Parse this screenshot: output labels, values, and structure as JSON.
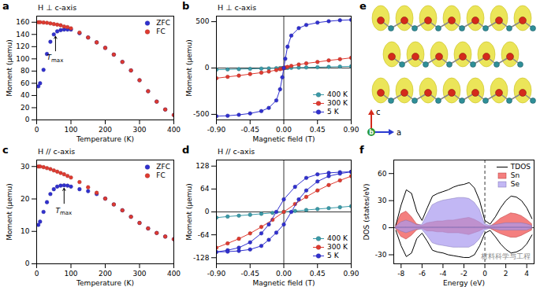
{
  "chart_data": [
    {
      "panel": "a",
      "type": "scatter",
      "condition": "H ⊥ c-axis",
      "xlabel": "Temperature (K)",
      "ylabel": "Moment (μemu)",
      "xlim": [
        0,
        400
      ],
      "xticks": [
        0,
        100,
        200,
        300,
        400
      ],
      "ylim": [
        0,
        170
      ],
      "yticks": [
        0,
        20,
        40,
        60,
        80,
        100,
        120,
        140,
        160
      ],
      "legend": "top-right",
      "x": [
        5,
        10,
        20,
        30,
        40,
        50,
        60,
        70,
        80,
        90,
        100,
        125,
        150,
        175,
        200,
        225,
        250,
        275,
        300,
        325,
        350,
        375,
        400
      ],
      "series": [
        {
          "name": "ZFC",
          "color": "#3030d0",
          "marker": "circle",
          "values": [
            55,
            60,
            82,
            108,
            128,
            140,
            145,
            147,
            148,
            148,
            148,
            142,
            135,
            127,
            118,
            107,
            95,
            81,
            65,
            47,
            30,
            17,
            8
          ]
        },
        {
          "name": "FC",
          "color": "#e03a30",
          "marker": "circle",
          "values": [
            160,
            160,
            159.5,
            159,
            158,
            157,
            156,
            155,
            153,
            152,
            150,
            143,
            135,
            127,
            118,
            107,
            95,
            81,
            65,
            47,
            30,
            17,
            8
          ]
        }
      ],
      "annotations": [
        {
          "text": "T",
          "subscript": "max",
          "x": 55,
          "y": 103,
          "arrow_from": [
            55,
            113
          ],
          "arrow_to": [
            55,
            137
          ]
        }
      ]
    },
    {
      "panel": "b",
      "type": "line",
      "condition": "H ⊥ c-axis",
      "xlabel": "Magnetic field (T)",
      "ylabel": "Moment (μemu)",
      "xlim": [
        -0.9,
        0.9
      ],
      "xticks": [
        {
          "value": -0.9,
          "label": "-0.90"
        },
        {
          "value": -0.45,
          "label": "-0.45"
        },
        {
          "value": 0,
          "label": "0.00"
        },
        {
          "value": 0.45,
          "label": "0.45"
        },
        {
          "value": 0.9,
          "label": "0.90"
        }
      ],
      "ylim": [
        -560,
        560
      ],
      "yticks": [
        -500,
        0,
        500
      ],
      "legend": "bottom-right",
      "reference_lines": [
        {
          "axis": "x",
          "value": 0,
          "line_style": "solid"
        },
        {
          "axis": "y",
          "value": 0,
          "line_style": "solid"
        }
      ],
      "x": [
        -0.9,
        -0.75,
        -0.6,
        -0.45,
        -0.3,
        -0.2,
        -0.1,
        -0.05,
        -0.02,
        0,
        0.02,
        0.05,
        0.1,
        0.2,
        0.3,
        0.45,
        0.6,
        0.75,
        0.9
      ],
      "series": [
        {
          "name": "400 K",
          "color": "#3a9aa8",
          "marker": "circle",
          "values": [
            -18,
            -15,
            -12,
            -9,
            -6,
            -4,
            -2,
            -1,
            -0.4,
            0,
            0.4,
            1,
            2,
            4,
            6,
            9,
            12,
            15,
            18
          ]
        },
        {
          "name": "300 K",
          "color": "#e03a30",
          "marker": "circle",
          "values": [
            -110,
            -95,
            -82,
            -65,
            -50,
            -38,
            -22,
            -12,
            -5,
            0,
            5,
            12,
            22,
            38,
            50,
            65,
            82,
            95,
            110
          ]
        },
        {
          "name": "5 K",
          "color": "#3030d0",
          "marker": "circle",
          "values": [
            -520,
            -515,
            -505,
            -490,
            -465,
            -430,
            -350,
            -230,
            -100,
            0,
            100,
            230,
            350,
            430,
            465,
            490,
            505,
            515,
            520
          ]
        }
      ]
    },
    {
      "panel": "e",
      "type": "diagram",
      "axis_labels": [
        "c",
        "b",
        "a"
      ]
    },
    {
      "panel": "c",
      "type": "scatter",
      "condition": "H // c-axis",
      "xlabel": "Temperature (K)",
      "ylabel": "Moment (μemu)",
      "xlim": [
        0,
        400
      ],
      "xticks": [
        0,
        100,
        200,
        300,
        400
      ],
      "ylim": [
        0,
        32
      ],
      "yticks": [
        0,
        10,
        20,
        30
      ],
      "legend": "top-right",
      "x": [
        5,
        10,
        20,
        30,
        40,
        50,
        60,
        70,
        80,
        90,
        100,
        125,
        150,
        175,
        200,
        225,
        250,
        275,
        300,
        325,
        350,
        375,
        400
      ],
      "series": [
        {
          "name": "ZFC",
          "color": "#3030d0",
          "marker": "circle",
          "values": [
            12,
            13,
            16,
            19,
            21.5,
            23,
            23.8,
            24.1,
            24.2,
            24.1,
            23.8,
            23,
            22.4,
            21.5,
            20.1,
            18.3,
            16.5,
            14.5,
            12.6,
            10.9,
            9.5,
            8.4,
            7.6
          ]
        },
        {
          "name": "FC",
          "color": "#e03a30",
          "marker": "circle",
          "values": [
            30,
            30,
            29.8,
            29.5,
            29.2,
            28.8,
            28.4,
            28,
            27.6,
            27.1,
            26.6,
            25.2,
            23.6,
            21.9,
            20.1,
            18.3,
            16.5,
            14.5,
            12.6,
            10.9,
            9.5,
            8.4,
            7.6
          ]
        }
      ],
      "annotations": [
        {
          "text": "T",
          "subscript": "max",
          "x": 80,
          "y": 16.6,
          "arrow_from": [
            80,
            18.6
          ],
          "arrow_to": [
            80,
            23.3
          ]
        }
      ]
    },
    {
      "panel": "d",
      "type": "line",
      "condition": "H // c-axis",
      "xlabel": "Magnetic field (T)",
      "ylabel": "Moment (μemu)",
      "xlim": [
        -0.9,
        0.9
      ],
      "xticks": [
        {
          "value": -0.9,
          "label": "-0.90"
        },
        {
          "value": -0.45,
          "label": "-0.45"
        },
        {
          "value": 0,
          "label": "0.00"
        },
        {
          "value": 0.45,
          "label": "0.45"
        },
        {
          "value": 0.9,
          "label": "0.90"
        }
      ],
      "ylim": [
        -145,
        145
      ],
      "yticks": [
        -128,
        -64,
        0,
        64,
        128
      ],
      "legend": "bottom-right",
      "reference_lines": [
        {
          "axis": "x",
          "value": 0,
          "line_style": "solid"
        },
        {
          "axis": "y",
          "value": 0,
          "line_style": "solid"
        }
      ],
      "series": [
        {
          "name": "400 K",
          "color": "#3a9aa8",
          "marker": "circle",
          "x": [
            -0.9,
            -0.75,
            -0.6,
            -0.45,
            -0.3,
            -0.15,
            0,
            0.15,
            0.3,
            0.45,
            0.6,
            0.75,
            0.9
          ],
          "values": [
            -16,
            -13,
            -10.5,
            -8,
            -5.3,
            -2.7,
            0,
            2.7,
            5.3,
            8,
            10.5,
            13,
            16
          ]
        },
        {
          "name": "300 K",
          "color": "#e03a30",
          "marker": "circle",
          "x": [
            -0.9,
            -0.75,
            -0.6,
            -0.45,
            -0.3,
            -0.15,
            0,
            0.15,
            0.3,
            0.45,
            0.6,
            0.75,
            0.9
          ],
          "values": [
            -100,
            -88,
            -75,
            -60,
            -42,
            -22,
            0,
            22,
            42,
            60,
            75,
            88,
            100
          ]
        },
        {
          "name": "5 K",
          "color": "#3030d0",
          "marker": "circle",
          "x": [
            0.9,
            0.75,
            0.6,
            0.45,
            0.3,
            0.15,
            0,
            -0.1,
            -0.2,
            -0.3,
            -0.45,
            -0.6,
            -0.75,
            -0.9,
            -0.75,
            -0.6,
            -0.45,
            -0.3,
            -0.2,
            -0.1,
            0,
            0.1,
            0.2,
            0.3,
            0.45,
            0.6,
            0.75,
            0.9
          ],
          "values": [
            112,
            111,
            109,
            105,
            95,
            70,
            35,
            0,
            -35,
            -60,
            -85,
            -100,
            -107,
            -112,
            -111,
            -109,
            -105,
            -95,
            -78,
            -58,
            -35,
            0,
            35,
            60,
            85,
            100,
            107,
            112
          ]
        }
      ]
    },
    {
      "panel": "f",
      "type": "area",
      "xlabel": "Energy (eV)",
      "ylabel": "DOS (states/eV)",
      "xlim": [
        -8.7,
        4.7
      ],
      "xticks": [
        -8,
        -6,
        -4,
        -2,
        0,
        2,
        4
      ],
      "ylim": [
        -40,
        75
      ],
      "yticks": [
        -30,
        0,
        30,
        60
      ],
      "legend": "top-right",
      "watermark": "材料科学与工程",
      "reference_lines": [
        {
          "axis": "x",
          "value": 0,
          "line_style": "dashed"
        },
        {
          "axis": "y",
          "value": 0,
          "line_style": "solid"
        }
      ],
      "x": [
        -8.5,
        -8,
        -7.5,
        -7,
        -6.5,
        -6,
        -5.5,
        -5,
        -4.5,
        -4,
        -3.5,
        -3,
        -2.5,
        -2,
        -1.5,
        -1,
        -0.5,
        0,
        0.5,
        1,
        1.5,
        2,
        2.5,
        3,
        3.5,
        4,
        4.5
      ],
      "series": [
        {
          "name": "TDOS",
          "type": "line",
          "color": "#000000",
          "values": [
            3,
            25,
            42,
            38,
            18,
            8,
            22,
            35,
            38,
            40,
            42,
            45,
            47,
            48,
            50,
            44,
            30,
            8,
            4,
            12,
            22,
            30,
            35,
            34,
            30,
            22,
            10
          ],
          "values_down": [
            -3,
            -20,
            -32,
            -28,
            -12,
            -6,
            -15,
            -25,
            -27,
            -28,
            -30,
            -31,
            -32,
            -33,
            -33,
            -30,
            -20,
            -6,
            -3,
            -10,
            -18,
            -24,
            -28,
            -27,
            -24,
            -18,
            -8
          ]
        },
        {
          "name": "Sn",
          "type": "area",
          "color": "#f04848",
          "values": [
            2,
            15,
            18,
            12,
            4,
            2,
            5,
            6,
            7,
            7,
            8,
            8,
            9,
            10,
            11,
            9,
            6,
            2,
            1,
            5,
            10,
            13,
            16,
            15,
            13,
            9,
            4
          ],
          "values_down": [
            -1,
            -10,
            -13,
            -9,
            -3,
            -1,
            -4,
            -4,
            -5,
            -5,
            -6,
            -6,
            -6,
            -7,
            -8,
            -6,
            -4,
            -1,
            -1,
            -4,
            -7,
            -9,
            -11,
            -11,
            -9,
            -6,
            -3
          ]
        },
        {
          "name": "Se",
          "type": "area",
          "color": "#a898f0",
          "values": [
            1,
            6,
            8,
            6,
            3,
            3,
            14,
            25,
            28,
            30,
            31,
            32,
            33,
            33,
            32,
            28,
            20,
            4,
            2,
            3,
            4,
            5,
            5,
            5,
            5,
            4,
            2
          ],
          "values_down": [
            -1,
            -4,
            -6,
            -4,
            -2,
            -2,
            -9,
            -17,
            -19,
            -20,
            -21,
            -22,
            -22,
            -22,
            -22,
            -19,
            -13,
            -3,
            -1,
            -2,
            -3,
            -3,
            -3,
            -3,
            -3,
            -3,
            -1
          ]
        }
      ]
    }
  ]
}
